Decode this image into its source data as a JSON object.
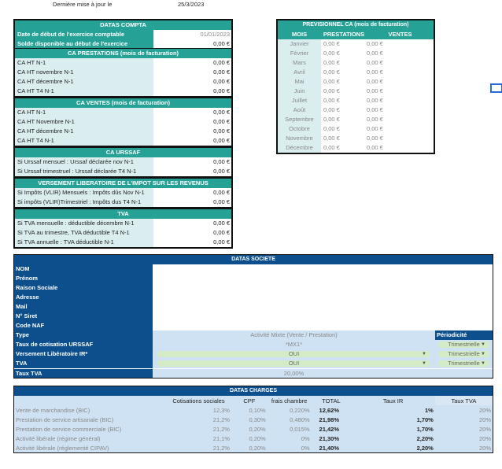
{
  "update": {
    "label": "Dernière mise à jour le",
    "date": "25/3/2023"
  },
  "compta": {
    "title": "DATAS COMPTA",
    "rows": [
      {
        "label": "Date de début de l'exercice comptable",
        "value": "01/01/2023"
      },
      {
        "label": "Solde disponible au début de l'exercice",
        "value": "0,00 €"
      }
    ]
  },
  "sections": [
    {
      "title": "CA PRESTATIONS (mois de facturation)",
      "rows": [
        {
          "label": "CA HT N-1",
          "value": "0,00 €"
        },
        {
          "label": "CA HT novembre N-1",
          "value": "0,00 €"
        },
        {
          "label": "CA HT décembre N-1",
          "value": "0,00 €"
        },
        {
          "label": "CA HT T4 N-1",
          "value": "0,00 €"
        }
      ]
    },
    {
      "title": "CA VENTES (mois de facturation)",
      "rows": [
        {
          "label": "CA HT N-1",
          "value": "0,00 €"
        },
        {
          "label": "CA HT Novembre N-1",
          "value": "0,00 €"
        },
        {
          "label": "CA HT décembre N-1",
          "value": "0,00 €"
        },
        {
          "label": "CA HT T4 N-1",
          "value": "0,00 €"
        }
      ]
    },
    {
      "title": "CA URSSAF",
      "rows": [
        {
          "label": "Si Urssaf mensuel : Urssaf déclarée nov N-1",
          "value": "0,00 €"
        },
        {
          "label": "Si Urssaf trimestruel : Urssaf déclarée T4 N-1",
          "value": "0,00 €"
        }
      ]
    },
    {
      "title": "VERSEMENT LIBERATOIRE DE L'IMPOT SUR LES REVENUS",
      "rows": [
        {
          "label": "Si Impôts (VLIR) Mensuels : Impôts dûs Nov N-1",
          "value": "0,00 €"
        },
        {
          "label": "Si impôts (VLIR)Trimestriel : Impôts dus T4 N-1",
          "value": "0,00 €"
        }
      ]
    },
    {
      "title": "TVA",
      "rows": [
        {
          "label": "Si TVA mensuelle :  déductible décembre N-1",
          "value": "0,00 €"
        },
        {
          "label": "Si TVA au trimestre, TVA déductible T4 N-1",
          "value": "0,00 €"
        },
        {
          "label": "Si TVA annuelle : TVA déductible N-1",
          "value": "0,00 €"
        }
      ]
    }
  ],
  "previsionnel": {
    "title": "PREVISIONNEL CA (mois de facturation)",
    "headers": [
      "MOIS",
      "PRESTATIONS",
      "VENTES"
    ],
    "rows": [
      [
        "Janvier",
        "0,00 €",
        "0,00 €"
      ],
      [
        "Février",
        "0,00 €",
        "0,00 €"
      ],
      [
        "Mars",
        "0,00 €",
        "0,00 €"
      ],
      [
        "Avril",
        "0,00 €",
        "0,00 €"
      ],
      [
        "Mai",
        "0,00 €",
        "0,00 €"
      ],
      [
        "Juin",
        "0,00 €",
        "0,00 €"
      ],
      [
        "Juillet",
        "0,00 €",
        "0,00 €"
      ],
      [
        "Août",
        "0,00 €",
        "0,00 €"
      ],
      [
        "Septembre",
        "0,00 €",
        "0,00 €"
      ],
      [
        "Octobre",
        "0,00 €",
        "0,00 €"
      ],
      [
        "Novembre",
        "0,00 €",
        "0,00 €"
      ],
      [
        "Décembre",
        "0,00 €",
        "0,00 €"
      ]
    ]
  },
  "societe": {
    "title": "DATAS SOCIETE",
    "labels": [
      "NOM",
      "Prénom",
      "Raison Sociale",
      "Adresse",
      "Mail",
      "N° Siret",
      "Code NAF"
    ],
    "type_label": "Type",
    "type_value": "Activité Mixte (Vente / Prestation)",
    "periodicite": "Périodicité",
    "taux_label": "Taux de cotisation URSSAF",
    "taux_value": "*MX1*",
    "taux_period": "Trimestrielle",
    "vl_label": "Versement Libératoire IR*",
    "vl_value": "OUI",
    "vl_period": "Trimestrielle",
    "tva_label": "TVA",
    "tva_value": "OUI",
    "tva_period": "Trimestrielle",
    "taux_tva_label": "Taux TVA",
    "taux_tva_value": "20,00%"
  },
  "charges": {
    "title": "DATAS CHARGES",
    "headers": [
      "",
      "Cotisations sociales",
      "CPF",
      "frais chambre",
      "TOTAL",
      "Taux IR",
      "Taux TVA"
    ],
    "rows": [
      [
        "Vente de marchandise (BIC)",
        "12,3%",
        "0,10%",
        "0,220%",
        "12,62%",
        "1%",
        "20%"
      ],
      [
        "Prestation de service artisanale (BIC)",
        "21,2%",
        "0,30%",
        "0,480%",
        "21,98%",
        "1,70%",
        "20%"
      ],
      [
        "Prestation de service commerciale (BIC)",
        "21,2%",
        "0,20%",
        "0,015%",
        "21,42%",
        "1,70%",
        "20%"
      ],
      [
        "Activité libérale (régime général)",
        "21,1%",
        "0,20%",
        "0%",
        "21,30%",
        "2,20%",
        "20%"
      ],
      [
        "Activité libérale (réglementé CIPAV)",
        "21,2%",
        "0,20%",
        "0%",
        "21,40%",
        "2,20%",
        "20%"
      ]
    ]
  }
}
